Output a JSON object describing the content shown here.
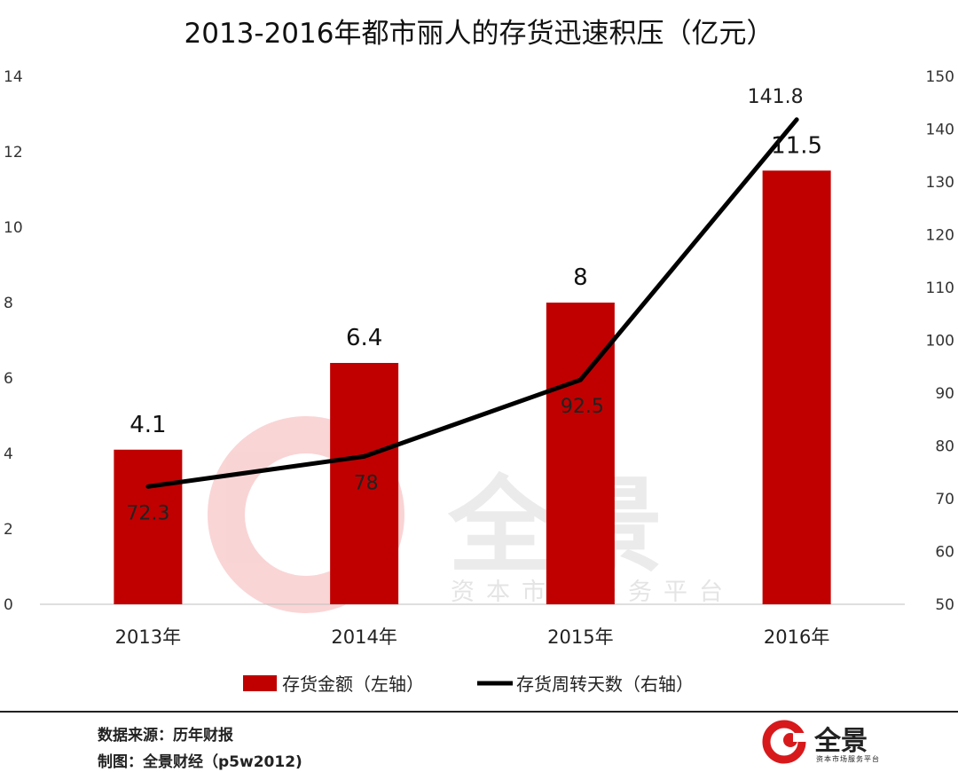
{
  "title": "2013-2016年都市丽人的存货迅速积压（亿元）",
  "chart_data": {
    "type": "bar",
    "categories": [
      "2013年",
      "2014年",
      "2015年",
      "2016年"
    ],
    "series": [
      {
        "name": "存货金额（左轴）",
        "type": "bar",
        "axis": "left",
        "values": [
          4.1,
          6.4,
          8,
          11.5
        ],
        "labels": [
          "4.1",
          "6.4",
          "8",
          "11.5"
        ],
        "color": "#c00000"
      },
      {
        "name": "存货周转天数（右轴）",
        "type": "line",
        "axis": "right",
        "values": [
          72.3,
          78,
          92.5,
          141.8
        ],
        "labels": [
          "72.3",
          "78",
          "92.5",
          "141.8"
        ],
        "color": "#000000"
      }
    ],
    "left_axis": {
      "range": [
        0,
        14
      ],
      "ticks": [
        "0",
        "2",
        "4",
        "6",
        "8",
        "10",
        "12",
        "14"
      ]
    },
    "right_axis": {
      "range": [
        50,
        150
      ],
      "ticks": [
        "50",
        "60",
        "70",
        "80",
        "90",
        "100",
        "110",
        "120",
        "130",
        "140",
        "150"
      ]
    },
    "legend_position": "bottom",
    "grid": false
  },
  "footer": {
    "source": "数据来源：历年财报",
    "credit": "制图：全景财经（p5w2012)"
  },
  "brand": {
    "name": "全景",
    "tagline": "资本市场服务平台",
    "color": "#d7191c"
  },
  "watermark": {
    "name": "全景",
    "tagline": "资本市场服务平台"
  }
}
